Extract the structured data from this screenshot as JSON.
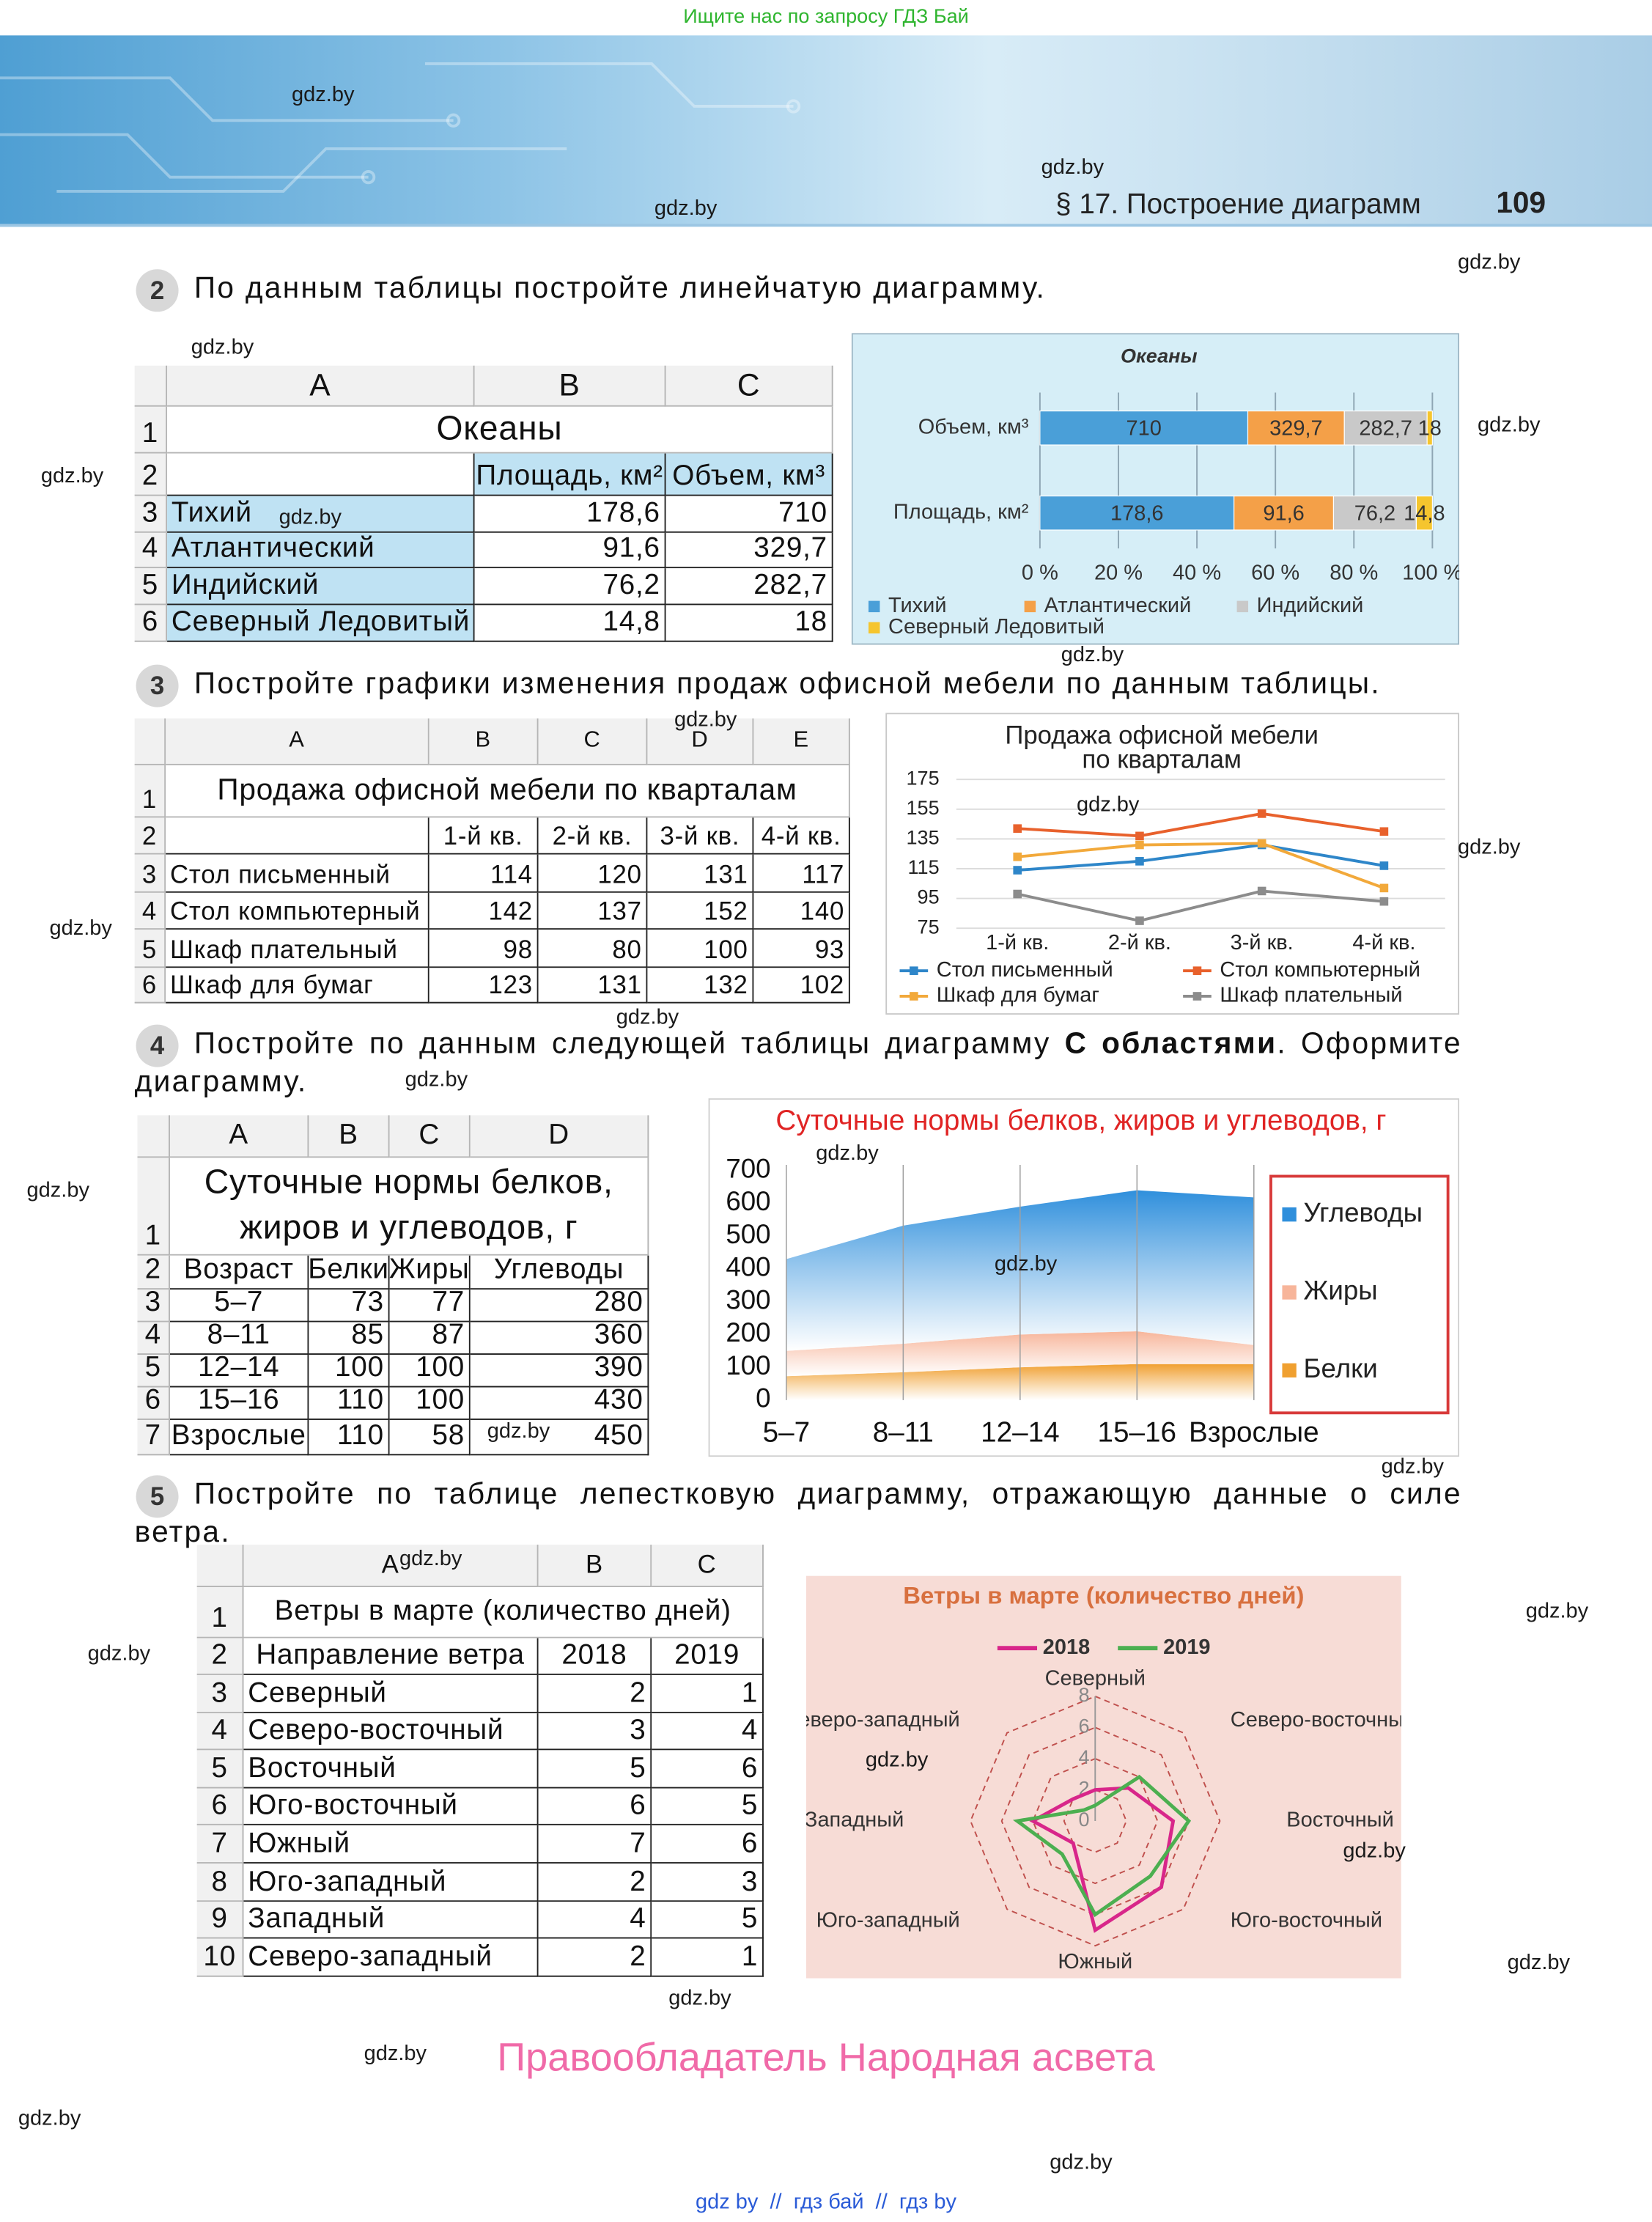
{
  "top_banner": "Ищите нас по запросу ГДЗ Бай",
  "header": {
    "section": "§ 17. Построение диаграмм",
    "page": "109"
  },
  "tasks": [
    {
      "number": "2",
      "text": [
        "По данным таблицы постройте линейчатую диаграмму."
      ]
    },
    {
      "number": "3",
      "text": [
        "Постройте графики изменения продаж офисной мебели по данным таблицы."
      ]
    },
    {
      "number": "4",
      "text": [
        "Постройте по данным следующей таблицы диаграмму ",
        "С областями",
        ". Оформите диаграмму."
      ]
    },
    {
      "number": "5",
      "text": [
        "Постройте по таблице лепестковую диаграмму, отражающую данные о силе ветра."
      ]
    }
  ],
  "tables": [
    {
      "columns": [
        "A",
        "B",
        "C"
      ],
      "row_numbers": [
        "1",
        "2",
        "3",
        "4",
        "5",
        "6"
      ],
      "title": "Океаны",
      "header": [
        "Площадь, км²",
        "Объем, км³"
      ],
      "rows": [
        [
          "Тихий",
          "178,6",
          "710"
        ],
        [
          "Атлантический",
          "91,6",
          "329,7"
        ],
        [
          "Индийский",
          "76,2",
          "282,7"
        ],
        [
          "Северный Ледовитый",
          "14,8",
          "18"
        ]
      ]
    },
    {
      "columns": [
        "A",
        "B",
        "C",
        "D",
        "E"
      ],
      "row_numbers": [
        "1",
        "2",
        "3",
        "4",
        "5",
        "6"
      ],
      "title": "Продажа офисной мебели по кварталам",
      "header": [
        "1-й кв.",
        "2-й кв.",
        "3-й кв.",
        "4-й кв."
      ],
      "rows": [
        [
          "Стол письменный",
          "114",
          "120",
          "131",
          "117"
        ],
        [
          "Стол компьютерный",
          "142",
          "137",
          "152",
          "140"
        ],
        [
          "Шкаф плательный",
          "98",
          "80",
          "100",
          "93"
        ],
        [
          "Шкаф для бумаг",
          "123",
          "131",
          "132",
          "102"
        ]
      ]
    },
    {
      "columns": [
        "A",
        "B",
        "C",
        "D"
      ],
      "row_numbers": [
        "1",
        "2",
        "3",
        "4",
        "5",
        "6",
        "7"
      ],
      "title_lines": [
        "Суточные нормы белков,",
        "жиров и углеводов, г"
      ],
      "header": [
        "Возраст",
        "Белки",
        "Жиры",
        "Углеводы"
      ],
      "rows": [
        [
          "5–7",
          "73",
          "77",
          "280"
        ],
        [
          "8–11",
          "85",
          "87",
          "360"
        ],
        [
          "12–14",
          "100",
          "100",
          "390"
        ],
        [
          "15–16",
          "110",
          "100",
          "430"
        ],
        [
          "Взрослые",
          "110",
          "58",
          "450"
        ]
      ]
    },
    {
      "columns": [
        "A",
        "B",
        "C"
      ],
      "row_numbers": [
        "1",
        "2",
        "3",
        "4",
        "5",
        "6",
        "7",
        "8",
        "9",
        "10"
      ],
      "title": "Ветры в марте (количество дней)",
      "header": [
        "Направление ветра",
        "2018",
        "2019"
      ],
      "rows": [
        [
          "Северный",
          "2",
          "1"
        ],
        [
          "Северо-восточный",
          "3",
          "4"
        ],
        [
          "Восточный",
          "5",
          "6"
        ],
        [
          "Юго-восточный",
          "6",
          "5"
        ],
        [
          "Южный",
          "7",
          "6"
        ],
        [
          "Юго-западный",
          "2",
          "3"
        ],
        [
          "Западный",
          "4",
          "5"
        ],
        [
          "Северо-западный",
          "2",
          "1"
        ]
      ]
    }
  ],
  "chart_data": [
    {
      "type": "bar",
      "orientation": "horizontal",
      "stacked": "percent",
      "title": "Океаны",
      "categories": [
        "Объем, км³",
        "Площадь, км²"
      ],
      "series": [
        {
          "name": "Тихий",
          "color": "#4a9fd8",
          "values": [
            710,
            178.6
          ],
          "value_labels": [
            "710",
            "178,6"
          ]
        },
        {
          "name": "Атлантический",
          "color": "#f4a048",
          "values": [
            329.7,
            91.6
          ],
          "value_labels": [
            "329,7",
            "91,6"
          ]
        },
        {
          "name": "Индийский",
          "color": "#c9c9c9",
          "values": [
            282.7,
            76.2
          ],
          "value_labels": [
            "282,7",
            "76,2"
          ]
        },
        {
          "name": "Северный Ледовитый",
          "color": "#f5c52e",
          "values": [
            18,
            14.8
          ],
          "value_labels": [
            "18",
            "14,8"
          ]
        }
      ],
      "xlim": [
        0,
        100
      ],
      "xticks": [
        {
          "value": 0,
          "label": "0 %"
        },
        {
          "value": 20,
          "label": "20 %"
        },
        {
          "value": 40,
          "label": "40 %"
        },
        {
          "value": 60,
          "label": "60 %"
        },
        {
          "value": 80,
          "label": "80 %"
        },
        {
          "value": 100,
          "label": "100 %"
        }
      ],
      "grid": true,
      "legend": "bottom"
    },
    {
      "type": "line",
      "title_lines": [
        "Продажа офисной мебели",
        "по кварталам"
      ],
      "categories": [
        "1-й кв.",
        "2-й кв.",
        "3-й кв.",
        "4-й кв."
      ],
      "series": [
        {
          "name": "Стол письменный",
          "color": "#2e86c9",
          "values": [
            114,
            120,
            131,
            117
          ]
        },
        {
          "name": "Стол компьютерный",
          "color": "#e8612c",
          "values": [
            142,
            137,
            152,
            140
          ]
        },
        {
          "name": "Шкаф для бумаг",
          "color": "#f2a93b",
          "values": [
            123,
            131,
            132,
            102
          ]
        },
        {
          "name": "Шкаф плательный",
          "color": "#8c8c8c",
          "values": [
            98,
            80,
            100,
            93
          ]
        }
      ],
      "ylim": [
        75,
        175
      ],
      "yticks": [
        75,
        95,
        115,
        135,
        155,
        175
      ],
      "grid": true,
      "legend": "bottom"
    },
    {
      "type": "area",
      "stacked": true,
      "title": "Суточные нормы белков, жиров и углеводов, г",
      "categories": [
        "5–7",
        "8–11",
        "12–14",
        "15–16",
        "Взрослые"
      ],
      "series": [
        {
          "name": "Белки",
          "color": "#f0a030",
          "values": [
            73,
            85,
            100,
            110,
            110
          ]
        },
        {
          "name": "Жиры",
          "color": "#f7b59a",
          "values": [
            77,
            87,
            100,
            100,
            58
          ]
        },
        {
          "name": "Углеводы",
          "color": "#2f8fdc",
          "values": [
            280,
            360,
            390,
            430,
            450
          ]
        }
      ],
      "ylim": [
        0,
        700
      ],
      "yticks": [
        0,
        100,
        200,
        300,
        400,
        500,
        600,
        700
      ],
      "grid": true,
      "legend": "right"
    },
    {
      "type": "radar",
      "title": "Ветры в марте (количество дней)",
      "categories": [
        "Северный",
        "Северо-восточный",
        "Восточный",
        "Юго-восточный",
        "Южный",
        "Юго-западный",
        "Западный",
        "Северо-западный"
      ],
      "series": [
        {
          "name": "2018",
          "color": "#d8268a",
          "values": [
            2,
            3,
            5,
            6,
            7,
            2,
            4,
            2
          ]
        },
        {
          "name": "2019",
          "color": "#4caf50",
          "values": [
            1,
            4,
            6,
            5,
            6,
            3,
            5,
            1
          ]
        }
      ],
      "rlim": [
        0,
        8
      ],
      "rticks": [
        0,
        2,
        4,
        6,
        8
      ],
      "grid": true,
      "legend": "top"
    }
  ],
  "footer": {
    "rights": "Правообладатель Народная асвета",
    "links": "gdz by  //  гдз бай  //  гдз by"
  },
  "watermarks": [
    "gdz.by",
    "gdz.by",
    "gdz.by",
    "gdz.by",
    "gdz.by",
    "gdz.by",
    "gdz.by",
    "gdz.by",
    "gdz.by",
    "gdz.by",
    "gdz.by",
    "gdz.by",
    "gdz.by",
    "gdz.by",
    "gdz.by",
    "gdz.by",
    "gdz.by",
    "gdz.by",
    "gdz.by",
    "gdz.by",
    "gdz.by",
    "gdz.by",
    "gdz.by",
    "gdz.by",
    "gdz.by",
    "gdz.by",
    "gdz.by",
    "gdz.by",
    "gdz.by",
    "gdz.by"
  ]
}
